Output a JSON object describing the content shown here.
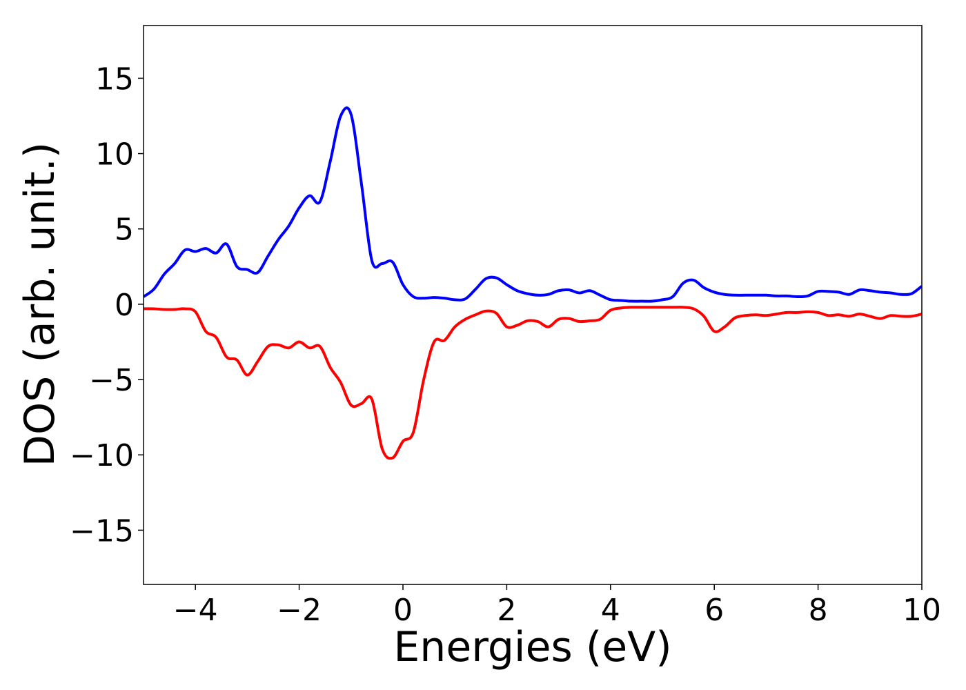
{
  "chart_data": {
    "type": "line",
    "xlabel": "Energies (eV)",
    "ylabel": "DOS (arb. unit.)",
    "x": [
      -5.0,
      -4.8,
      -4.6,
      -4.4,
      -4.2,
      -4.0,
      -3.8,
      -3.6,
      -3.4,
      -3.2,
      -3.0,
      -2.8,
      -2.6,
      -2.4,
      -2.2,
      -2.0,
      -1.8,
      -1.6,
      -1.4,
      -1.2,
      -1.0,
      -0.8,
      -0.6,
      -0.4,
      -0.2,
      0.0,
      0.2,
      0.4,
      0.6,
      0.8,
      1.0,
      1.2,
      1.4,
      1.6,
      1.8,
      2.0,
      2.2,
      2.4,
      2.6,
      2.8,
      3.0,
      3.2,
      3.4,
      3.6,
      3.8,
      4.0,
      4.2,
      4.4,
      4.6,
      4.8,
      5.0,
      5.2,
      5.4,
      5.6,
      5.8,
      6.0,
      6.2,
      6.4,
      6.6,
      6.8,
      7.0,
      7.2,
      7.4,
      7.6,
      7.8,
      8.0,
      8.2,
      8.4,
      8.6,
      8.8,
      9.0,
      9.2,
      9.4,
      9.6,
      9.8,
      10.0
    ],
    "series": [
      {
        "color": "#0000ff",
        "values": [
          0.5,
          1.0,
          2.0,
          2.7,
          3.6,
          3.5,
          3.7,
          3.4,
          4.0,
          2.5,
          2.3,
          2.1,
          3.2,
          4.3,
          5.2,
          6.4,
          7.2,
          6.8,
          9.5,
          12.5,
          12.6,
          8.0,
          2.9,
          2.7,
          2.8,
          1.3,
          0.5,
          0.4,
          0.45,
          0.4,
          0.3,
          0.35,
          1.0,
          1.7,
          1.75,
          1.3,
          0.9,
          0.7,
          0.6,
          0.65,
          0.9,
          0.95,
          0.75,
          0.9,
          0.6,
          0.3,
          0.25,
          0.2,
          0.2,
          0.2,
          0.3,
          0.5,
          1.4,
          1.6,
          1.1,
          0.8,
          0.65,
          0.6,
          0.6,
          0.6,
          0.6,
          0.55,
          0.55,
          0.5,
          0.55,
          0.85,
          0.85,
          0.8,
          0.65,
          0.95,
          0.9,
          0.8,
          0.75,
          0.65,
          0.7,
          1.2
        ]
      },
      {
        "color": "#ff0000",
        "values": [
          -0.3,
          -0.3,
          -0.35,
          -0.35,
          -0.3,
          -0.5,
          -1.8,
          -2.2,
          -3.5,
          -3.7,
          -4.7,
          -3.8,
          -2.8,
          -2.7,
          -2.9,
          -2.5,
          -2.9,
          -2.8,
          -4.2,
          -5.2,
          -6.7,
          -6.6,
          -6.3,
          -9.6,
          -10.2,
          -9.1,
          -8.5,
          -5.0,
          -2.5,
          -2.4,
          -1.5,
          -1.0,
          -0.7,
          -0.45,
          -0.6,
          -1.5,
          -1.4,
          -1.1,
          -1.15,
          -1.5,
          -1.0,
          -0.95,
          -1.15,
          -1.1,
          -1.0,
          -0.4,
          -0.25,
          -0.2,
          -0.2,
          -0.2,
          -0.2,
          -0.2,
          -0.2,
          -0.3,
          -0.8,
          -1.8,
          -1.5,
          -0.9,
          -0.75,
          -0.7,
          -0.75,
          -0.65,
          -0.55,
          -0.55,
          -0.5,
          -0.55,
          -0.75,
          -0.7,
          -0.8,
          -0.65,
          -0.8,
          -0.95,
          -0.75,
          -0.8,
          -0.8,
          -0.65
        ]
      }
    ],
    "xlim": [
      -5,
      10
    ],
    "xticks": [
      {
        "value": -4,
        "label": "−4"
      },
      {
        "value": -2,
        "label": "−2"
      },
      0,
      2,
      4,
      6,
      8,
      10
    ],
    "ylim": [
      -18.6,
      18.5
    ],
    "yticks": [
      {
        "value": -15,
        "label": "−15"
      },
      {
        "value": -10,
        "label": "−10"
      },
      {
        "value": -5,
        "label": "−5"
      },
      0,
      5,
      10,
      15
    ]
  }
}
